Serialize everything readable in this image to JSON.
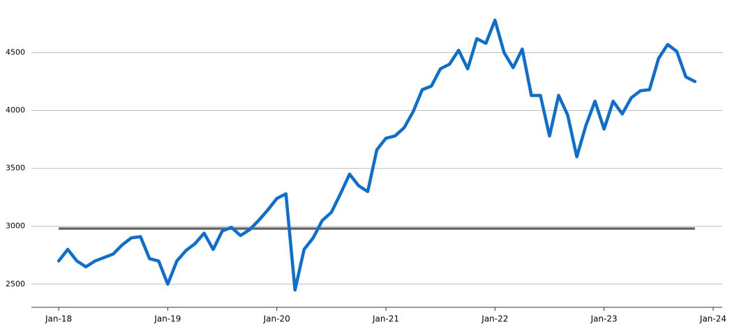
{
  "chart_data": {
    "type": "line",
    "x": [
      "2018-01",
      "2018-02",
      "2018-03",
      "2018-04",
      "2018-05",
      "2018-06",
      "2018-07",
      "2018-08",
      "2018-09",
      "2018-10",
      "2018-11",
      "2018-12",
      "2019-01",
      "2019-02",
      "2019-03",
      "2019-04",
      "2019-05",
      "2019-06",
      "2019-07",
      "2019-08",
      "2019-09",
      "2019-10",
      "2019-11",
      "2019-12",
      "2020-01",
      "2020-02",
      "2020-03",
      "2020-04",
      "2020-05",
      "2020-06",
      "2020-07",
      "2020-08",
      "2020-09",
      "2020-10",
      "2020-11",
      "2020-12",
      "2021-01",
      "2021-02",
      "2021-03",
      "2021-04",
      "2021-05",
      "2021-06",
      "2021-07",
      "2021-08",
      "2021-09",
      "2021-10",
      "2021-11",
      "2021-12",
      "2022-01",
      "2022-02",
      "2022-03",
      "2022-04",
      "2022-05",
      "2022-06",
      "2022-07",
      "2022-08",
      "2022-09",
      "2022-10",
      "2022-11",
      "2022-12",
      "2023-01",
      "2023-02",
      "2023-03",
      "2023-04",
      "2023-05",
      "2023-06",
      "2023-07",
      "2023-08",
      "2023-09",
      "2023-10",
      "2023-11"
    ],
    "series": [
      {
        "color": "#0a6fd1",
        "values": [
          2700,
          2800,
          2700,
          2650,
          2700,
          2730,
          2760,
          2840,
          2900,
          2910,
          2720,
          2700,
          2500,
          2700,
          2790,
          2850,
          2940,
          2800,
          2960,
          2990,
          2920,
          2970,
          3050,
          3140,
          3240,
          3280,
          2450,
          2800,
          2900,
          3050,
          3120,
          3280,
          3450,
          3350,
          3300,
          3660,
          3760,
          3780,
          3850,
          3990,
          4180,
          4210,
          4360,
          4400,
          4520,
          4360,
          4620,
          4580,
          4780,
          4500,
          4370,
          4530,
          4130,
          4130,
          3780,
          4130,
          3960,
          3600,
          3870,
          4080,
          3840,
          4080,
          3970,
          4110,
          4170,
          4180,
          4450,
          4570,
          4510,
          4290,
          4250
        ]
      }
    ],
    "reference_line": {
      "value": 2980,
      "color": "#666666"
    },
    "xlim": [
      "2017-10",
      "2024-02"
    ],
    "xticks": [
      {
        "value": "2018-01",
        "label": "Jan-18"
      },
      {
        "value": "2019-01",
        "label": "Jan-19"
      },
      {
        "value": "2020-01",
        "label": "Jan-20"
      },
      {
        "value": "2021-01",
        "label": "Jan-21"
      },
      {
        "value": "2022-01",
        "label": "Jan-22"
      },
      {
        "value": "2023-01",
        "label": "Jan-23"
      },
      {
        "value": "2024-01",
        "label": "Jan-24"
      }
    ],
    "ylim": [
      2300,
      4900
    ],
    "yticks": [
      2500,
      3000,
      3500,
      4000,
      4500
    ],
    "grid": true
  }
}
